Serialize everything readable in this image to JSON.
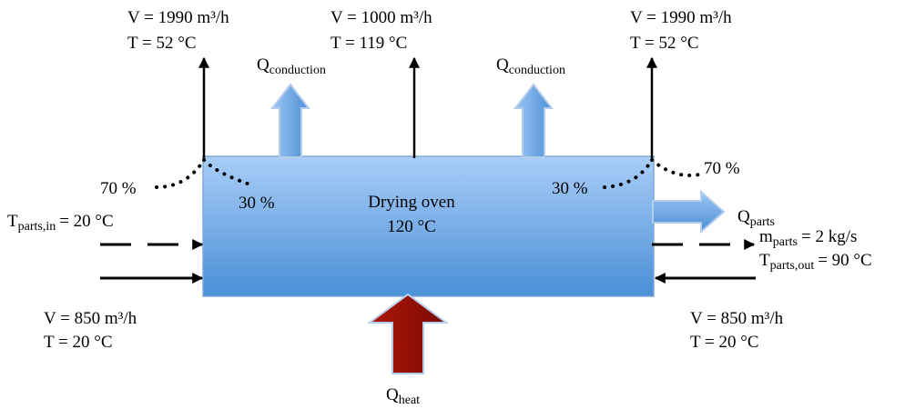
{
  "oven": {
    "title": "Drying oven",
    "temperature": "120 °C"
  },
  "top_left_outlet": {
    "flow": "V = 1990 m³/h",
    "temp": "T = 52 °C"
  },
  "top_center_outlet": {
    "flow": "V = 1000 m³/h",
    "temp": "T = 119 °C"
  },
  "top_right_outlet": {
    "flow": "V = 1990 m³/h",
    "temp": "T = 52 °C"
  },
  "conduction_left": {
    "symbol": "Q",
    "subscript": "conduction"
  },
  "conduction_right": {
    "symbol": "Q",
    "subscript": "conduction"
  },
  "split_left": {
    "outer": "70 %",
    "inner": "30 %"
  },
  "split_right": {
    "outer": "70 %",
    "inner": "30 %"
  },
  "parts_in": {
    "symbol": "T",
    "subscript": "parts,in",
    "value": "= 20 °C"
  },
  "parts_out_heat": {
    "symbol": "Q",
    "subscript": "parts"
  },
  "parts_mass": {
    "symbol": "m",
    "subscript": "parts",
    "value": "= 2 kg/s"
  },
  "parts_out_temp": {
    "symbol": "T",
    "subscript": "parts,out",
    "value": "= 90 °C"
  },
  "inlet_left": {
    "flow": "V = 850 m³/h",
    "temp": "T = 20 °C"
  },
  "inlet_right": {
    "flow": "V = 850 m³/h",
    "temp": "T = 20 °C"
  },
  "heat_input": {
    "symbol": "Q",
    "subscript": "heat"
  },
  "colors": {
    "oven_top": "#a9cdf7",
    "oven_bottom": "#4a8fd7",
    "conduction_arrow": "#6aa6e6",
    "heat_arrow": "#8e0f05",
    "arrow_outline": "#b4cdea"
  }
}
